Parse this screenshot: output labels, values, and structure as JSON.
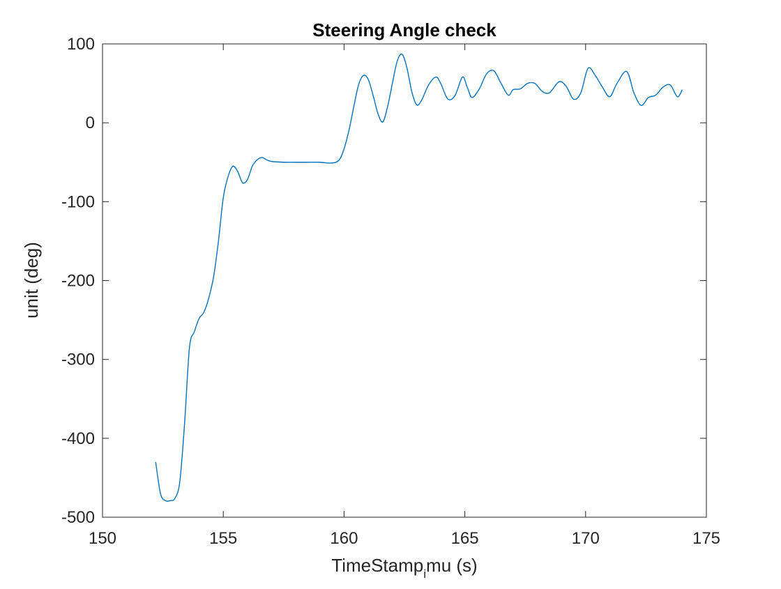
{
  "chart_data": {
    "type": "line",
    "title": "Steering Angle check",
    "xlabel": "TimeStamp",
    "xlabel_sub": "i",
    "xlabel_rest": "mu (s)",
    "ylabel": "unit (deg)",
    "xlim": [
      150,
      175
    ],
    "ylim": [
      -500,
      100
    ],
    "xticks": [
      150,
      155,
      160,
      165,
      170,
      175
    ],
    "yticks": [
      100,
      0,
      -100,
      -200,
      -300,
      -400,
      -500
    ],
    "grid": false,
    "line_color": "#0072BD",
    "series": [
      {
        "x": [
          152.2,
          152.4,
          152.6,
          152.8,
          153.0,
          153.2,
          153.4,
          153.6,
          153.8,
          154.0,
          154.2,
          154.4,
          154.6,
          154.8,
          155.0,
          155.2,
          155.4,
          155.6,
          155.8,
          156.0,
          156.2,
          156.4,
          156.6,
          156.8,
          157.0,
          157.5,
          158.0,
          158.5,
          159.0,
          159.5,
          159.8,
          160.0,
          160.2,
          160.4,
          160.6,
          160.8,
          161.0,
          161.2,
          161.4,
          161.6,
          161.8,
          162.0,
          162.2,
          162.4,
          162.6,
          162.8,
          163.0,
          163.2,
          163.5,
          163.8,
          164.0,
          164.3,
          164.6,
          164.9,
          165.1,
          165.3,
          165.6,
          165.9,
          166.2,
          166.5,
          166.8,
          167.0,
          167.3,
          167.6,
          167.9,
          168.2,
          168.5,
          168.9,
          169.2,
          169.5,
          169.8,
          170.1,
          170.4,
          170.7,
          171.0,
          171.3,
          171.7,
          172.0,
          172.3,
          172.6,
          172.9,
          173.2,
          173.5,
          173.8,
          174.0
        ],
        "y": [
          -430,
          -470,
          -479,
          -479,
          -476,
          -455,
          -380,
          -285,
          -265,
          -248,
          -240,
          -222,
          -195,
          -150,
          -95,
          -68,
          -55,
          -62,
          -76,
          -72,
          -55,
          -47,
          -44,
          -47,
          -49,
          -50,
          -50,
          -50,
          -50,
          -51,
          -47,
          -33,
          -10,
          20,
          48,
          60,
          55,
          35,
          12,
          1,
          20,
          50,
          78,
          87,
          70,
          40,
          23,
          28,
          48,
          58,
          50,
          30,
          35,
          58,
          45,
          32,
          43,
          62,
          66,
          50,
          35,
          42,
          43,
          50,
          50,
          40,
          38,
          52,
          46,
          30,
          38,
          69,
          60,
          45,
          33,
          50,
          65,
          38,
          22,
          32,
          35,
          45,
          48,
          33,
          42
        ]
      }
    ]
  }
}
